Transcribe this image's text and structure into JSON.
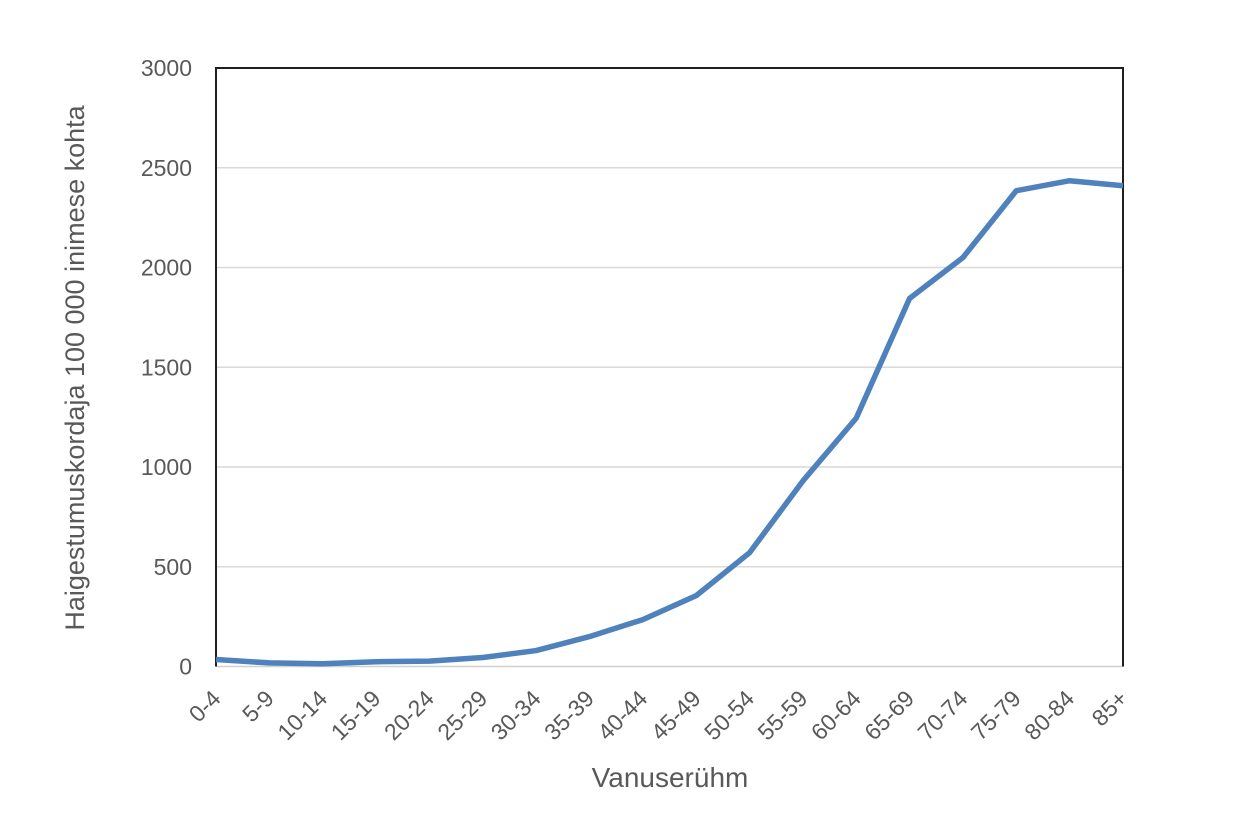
{
  "chart_data": {
    "type": "line",
    "categories": [
      "0-4",
      "5-9",
      "10-14",
      "15-19",
      "20-24",
      "25-29",
      "30-34",
      "35-39",
      "40-44",
      "45-49",
      "50-54",
      "55-59",
      "60-64",
      "65-69",
      "70-74",
      "75-79",
      "80-84",
      "85+"
    ],
    "values": [
      35,
      18,
      14,
      24,
      27,
      45,
      80,
      150,
      235,
      355,
      570,
      930,
      1245,
      1845,
      2050,
      2385,
      2435,
      2410
    ],
    "title": "",
    "xlabel": "Vanuserühm",
    "ylabel": "Haigestumuskordaja 100 000 inimese kohta",
    "ylim": [
      0,
      3000
    ],
    "yticks": [
      0,
      500,
      1000,
      1500,
      2000,
      2500,
      3000
    ],
    "legend": "none",
    "grid": "horizontal",
    "line_color": "#4F81BD",
    "label_color": "#595959",
    "gridline_color": "#D9D9D9",
    "baseline_color": "#D0D0D0",
    "border_color": "#1F1F1F"
  }
}
